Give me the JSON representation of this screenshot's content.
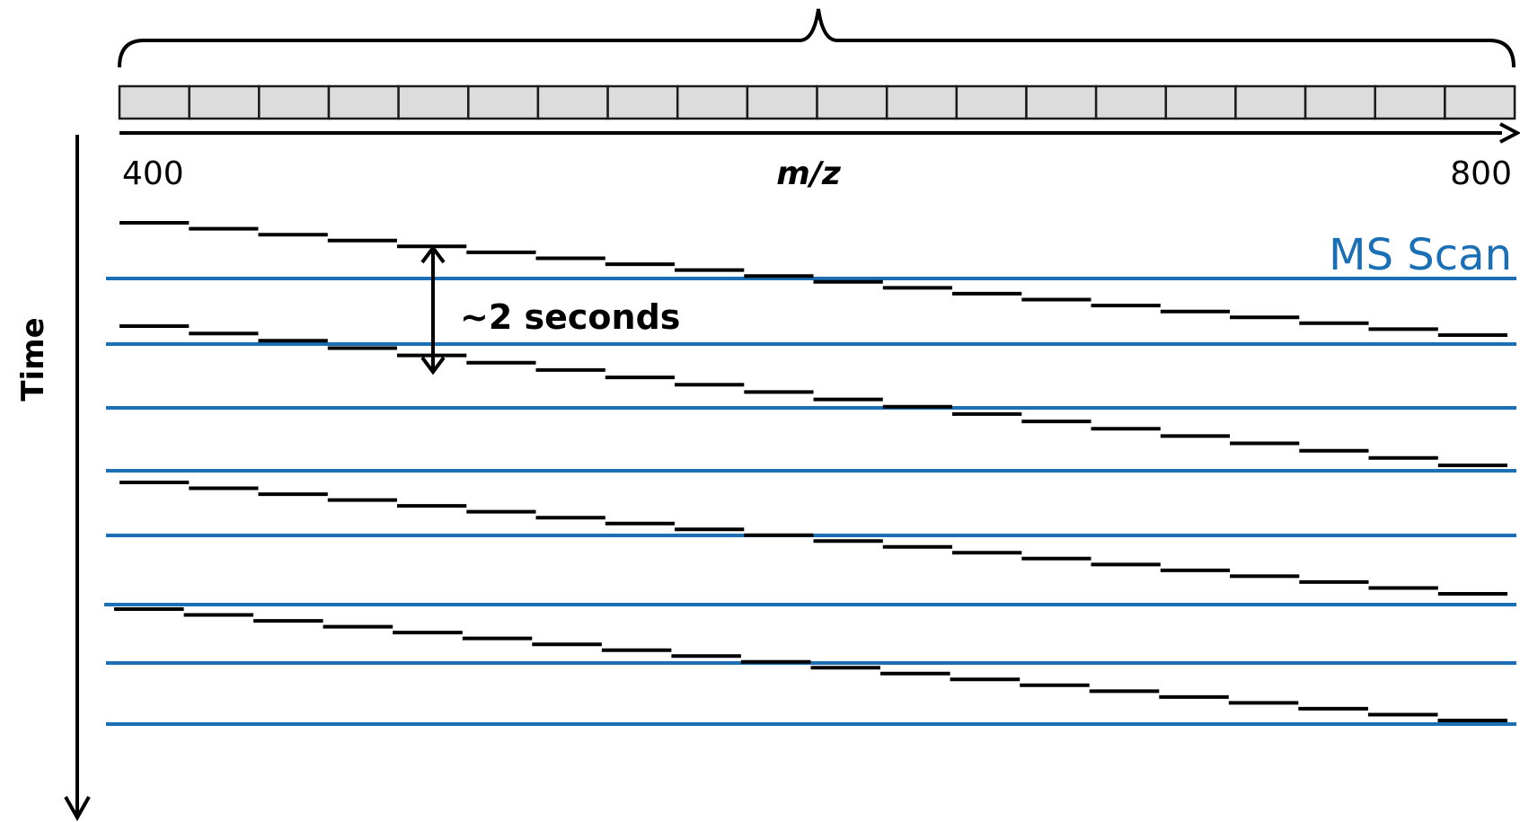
{
  "diagram": {
    "axis": {
      "min_label": "400",
      "max_label": "800",
      "unit_label": "m/z",
      "window_count": 20
    },
    "time_label": "Time",
    "interval_label": "~2 seconds",
    "ms_scan_label": "MS Scan",
    "cycles": 4,
    "colors": {
      "ms_scan": "#1a6fb5",
      "steps": "#000000",
      "window_fill": "#dcdcdc",
      "window_stroke": "#1a1a1a"
    }
  }
}
